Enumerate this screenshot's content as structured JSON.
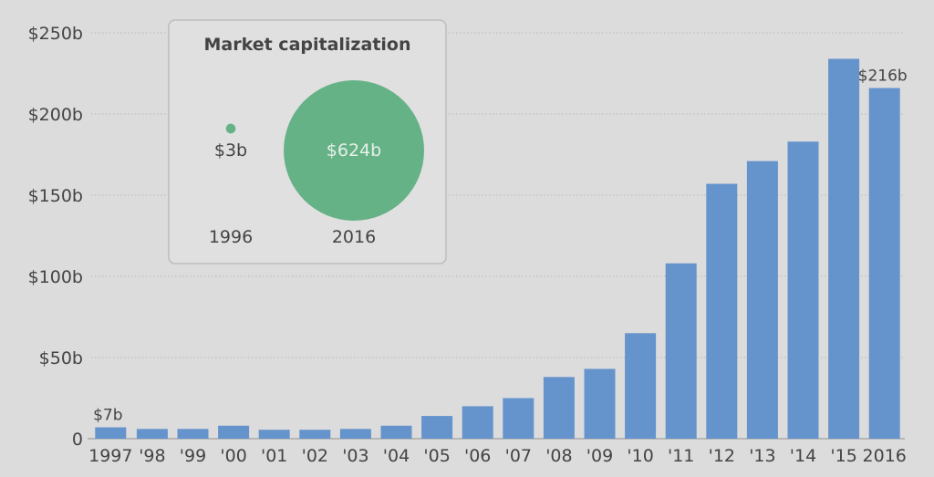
{
  "chart_data": {
    "type": "bar",
    "title": "",
    "xlabel": "",
    "ylabel": "",
    "categories": [
      "1997",
      "'98",
      "'99",
      "'00",
      "'01",
      "'02",
      "'03",
      "'04",
      "'05",
      "'06",
      "'07",
      "'08",
      "'09",
      "'10",
      "'11",
      "'12",
      "'13",
      "'14",
      "'15",
      "2016"
    ],
    "values": [
      7,
      6,
      6,
      8,
      5.5,
      5.5,
      6,
      8,
      14,
      20,
      25,
      38,
      43,
      65,
      108,
      157,
      171,
      183,
      234,
      216
    ],
    "unit": "billion USD",
    "ylim": [
      0,
      250
    ],
    "yticks": [
      0,
      50,
      100,
      150,
      200,
      250
    ],
    "ytick_labels": [
      "0",
      "$50b",
      "$100b",
      "$150b",
      "$200b",
      "$250b"
    ],
    "grid": "horizontal dotted",
    "data_labels": [
      {
        "category": "1997",
        "text": "$7b"
      },
      {
        "category": "2016",
        "text": "$216b"
      }
    ],
    "bar_color": "#6593cc",
    "inset": {
      "type": "bubble",
      "title": "Market capitalization",
      "points": [
        {
          "label": "1996",
          "value": 3,
          "text": "$3b"
        },
        {
          "label": "2016",
          "value": 624,
          "text": "$624b"
        }
      ],
      "color": "#66b287"
    }
  }
}
